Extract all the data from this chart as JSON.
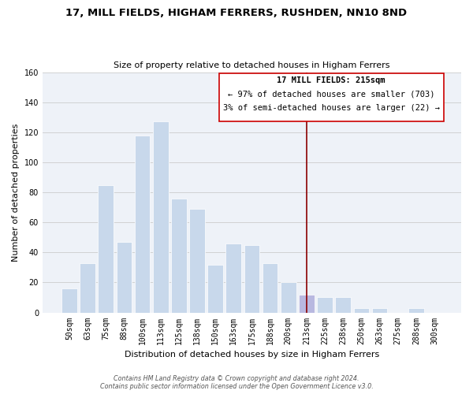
{
  "title": "17, MILL FIELDS, HIGHAM FERRERS, RUSHDEN, NN10 8ND",
  "subtitle": "Size of property relative to detached houses in Higham Ferrers",
  "xlabel": "Distribution of detached houses by size in Higham Ferrers",
  "ylabel": "Number of detached properties",
  "bar_labels": [
    "50sqm",
    "63sqm",
    "75sqm",
    "88sqm",
    "100sqm",
    "113sqm",
    "125sqm",
    "138sqm",
    "150sqm",
    "163sqm",
    "175sqm",
    "188sqm",
    "200sqm",
    "213sqm",
    "225sqm",
    "238sqm",
    "250sqm",
    "263sqm",
    "275sqm",
    "288sqm",
    "300sqm"
  ],
  "bar_values": [
    16,
    33,
    85,
    47,
    118,
    127,
    76,
    69,
    32,
    46,
    45,
    33,
    20,
    12,
    10,
    10,
    3,
    3,
    0,
    3,
    0
  ],
  "bar_color": "#c8d8eb",
  "highlight_bar_index": 13,
  "highlight_bar_color": "#b8b8e0",
  "vline_x": 13,
  "vline_color": "#8b0000",
  "ylim": [
    0,
    160
  ],
  "yticks": [
    0,
    20,
    40,
    60,
    80,
    100,
    120,
    140,
    160
  ],
  "annotation_title": "17 MILL FIELDS: 215sqm",
  "annotation_line1": "← 97% of detached houses are smaller (703)",
  "annotation_line2": "3% of semi-detached houses are larger (22) →",
  "footer_line1": "Contains HM Land Registry data © Crown copyright and database right 2024.",
  "footer_line2": "Contains public sector information licensed under the Open Government Licence v3.0.",
  "background_color": "#eef2f8",
  "grid_color": "#cccccc",
  "title_fontsize": 9.5,
  "subtitle_fontsize": 8,
  "axis_label_fontsize": 8,
  "tick_fontsize": 7,
  "annotation_fontsize": 7.5,
  "footer_fontsize": 5.8
}
